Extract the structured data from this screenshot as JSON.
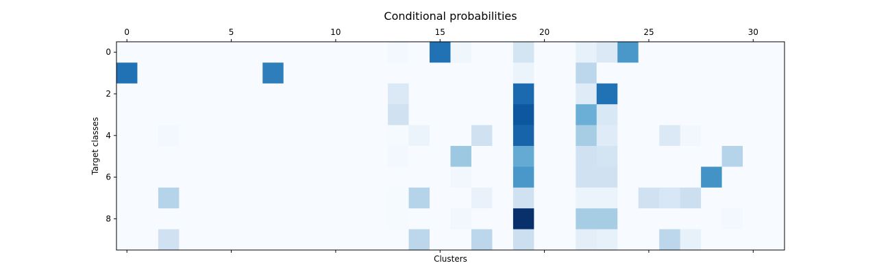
{
  "chart_data": {
    "type": "heatmap",
    "title": "Conditional probabilities",
    "xlabel": "Clusters",
    "ylabel": "Target classes",
    "x_range": [
      0,
      31
    ],
    "y_range": [
      0,
      9
    ],
    "xticks": [
      0,
      5,
      10,
      15,
      20,
      25,
      30
    ],
    "yticks": [
      0,
      2,
      4,
      6,
      8
    ],
    "x_ticks_position": "top",
    "colormap": "Blues",
    "vmax": 1.0,
    "rows": [
      [
        0,
        0,
        0,
        0,
        0,
        0,
        0,
        0,
        0,
        0,
        0,
        0,
        0,
        0.02,
        0,
        0.75,
        0.04,
        0,
        0,
        0.18,
        0,
        0,
        0.08,
        0.14,
        0.6,
        0,
        0,
        0,
        0,
        0,
        0,
        0
      ],
      [
        0.75,
        0,
        0,
        0,
        0,
        0,
        0,
        0.7,
        0,
        0,
        0,
        0,
        0,
        0,
        0,
        0,
        0,
        0,
        0,
        0.06,
        0,
        0,
        0.28,
        0,
        0,
        0,
        0,
        0,
        0,
        0,
        0,
        0
      ],
      [
        0,
        0,
        0,
        0,
        0,
        0,
        0,
        0,
        0,
        0,
        0,
        0,
        0,
        0.14,
        0,
        0,
        0,
        0,
        0,
        0.78,
        0,
        0,
        0.12,
        0.75,
        0,
        0,
        0,
        0,
        0,
        0,
        0,
        0
      ],
      [
        0,
        0,
        0,
        0,
        0,
        0,
        0,
        0,
        0,
        0,
        0,
        0,
        0,
        0.2,
        0,
        0,
        0,
        0,
        0,
        0.85,
        0,
        0,
        0.5,
        0.15,
        0,
        0,
        0,
        0,
        0,
        0,
        0,
        0
      ],
      [
        0,
        0,
        0.02,
        0,
        0,
        0,
        0,
        0,
        0,
        0,
        0,
        0,
        0,
        0.01,
        0.06,
        0,
        0,
        0.2,
        0,
        0.8,
        0,
        0,
        0.35,
        0.12,
        0,
        0,
        0.14,
        0.03,
        0,
        0,
        0,
        0
      ],
      [
        0,
        0,
        0,
        0,
        0,
        0,
        0,
        0,
        0,
        0,
        0,
        0,
        0,
        0.02,
        0,
        0,
        0.38,
        0,
        0,
        0.52,
        0,
        0,
        0.2,
        0.18,
        0,
        0,
        0,
        0,
        0,
        0.3,
        0,
        0
      ],
      [
        0,
        0,
        0,
        0,
        0,
        0,
        0,
        0,
        0,
        0,
        0,
        0,
        0,
        0,
        0,
        0,
        0.03,
        0,
        0,
        0.6,
        0,
        0,
        0.2,
        0.2,
        0,
        0,
        0,
        0,
        0.62,
        0,
        0,
        0
      ],
      [
        0,
        0,
        0.3,
        0,
        0,
        0,
        0,
        0,
        0,
        0,
        0,
        0,
        0,
        0.01,
        0.3,
        0,
        0,
        0.07,
        0,
        0.2,
        0,
        0,
        0.06,
        0.06,
        0,
        0.2,
        0.16,
        0.22,
        0,
        0,
        0,
        0
      ],
      [
        0,
        0,
        0,
        0,
        0,
        0,
        0,
        0,
        0,
        0,
        0,
        0,
        0,
        0.01,
        0,
        0,
        0.03,
        0,
        0,
        1.0,
        0,
        0,
        0.35,
        0.35,
        0,
        0,
        0,
        0,
        0,
        0.02,
        0,
        0
      ],
      [
        0,
        0,
        0.2,
        0,
        0,
        0,
        0,
        0,
        0,
        0,
        0,
        0,
        0,
        0,
        0.28,
        0,
        0,
        0.28,
        0,
        0.22,
        0,
        0,
        0.1,
        0.08,
        0,
        0,
        0.28,
        0.08,
        0,
        0,
        0,
        0
      ]
    ]
  }
}
